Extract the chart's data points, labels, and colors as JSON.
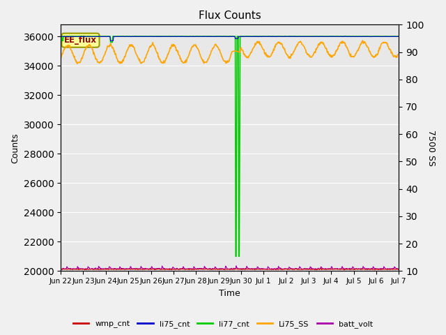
{
  "title": "Flux Counts",
  "ylabel_left": "Counts",
  "ylabel_right": "7500 SS",
  "xlabel": "Time",
  "annotation_text": "EE_flux",
  "bg_color": "#e8e8e8",
  "fig_bg": "#f0f0f0",
  "left_ylim": [
    20000,
    36800
  ],
  "right_ylim": [
    10,
    100
  ],
  "left_yticks": [
    20000,
    22000,
    24000,
    26000,
    28000,
    30000,
    32000,
    34000,
    36000
  ],
  "right_yticks": [
    10,
    20,
    30,
    40,
    50,
    60,
    70,
    80,
    90,
    100
  ],
  "xtick_labels": [
    "Jun 22",
    "Jun 23",
    "Jun 24",
    "Jun 25",
    "Jun 26",
    "Jun 27",
    "Jun 28",
    "Jun 29",
    "Jun 30",
    "Jul 1",
    "Jul 2",
    "Jul 3",
    "Jul 4",
    "Jul 5",
    "Jul 6",
    "Jul 7"
  ],
  "n_days": 16,
  "colors": {
    "wmp_cnt": "#cc0000",
    "li75_cnt": "#0000cc",
    "li77_cnt": "#00cc00",
    "Li75_SS": "#ffa500",
    "batt_volt": "#aa00aa"
  },
  "legend_labels": [
    "wmp_cnt",
    "li75_cnt",
    "li77_cnt",
    "Li75_SS",
    "batt_volt"
  ]
}
